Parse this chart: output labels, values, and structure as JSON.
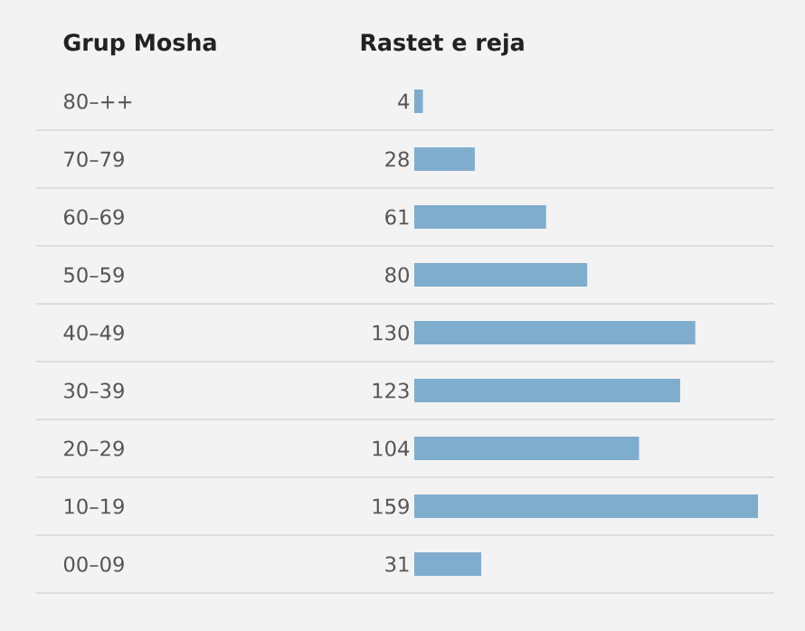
{
  "chart_data": {
    "type": "bar",
    "orientation": "horizontal",
    "ylabel": "Grup Mosha",
    "xlabel": "Rastet e reja",
    "categories": [
      "80–++",
      "70–79",
      "60–69",
      "50–59",
      "40–49",
      "30–39",
      "20–29",
      "10–19",
      "00–09"
    ],
    "values": [
      4,
      28,
      61,
      80,
      130,
      123,
      104,
      159,
      31
    ],
    "color": "#7fadce",
    "data_labels": true,
    "tick_labels": "y"
  }
}
